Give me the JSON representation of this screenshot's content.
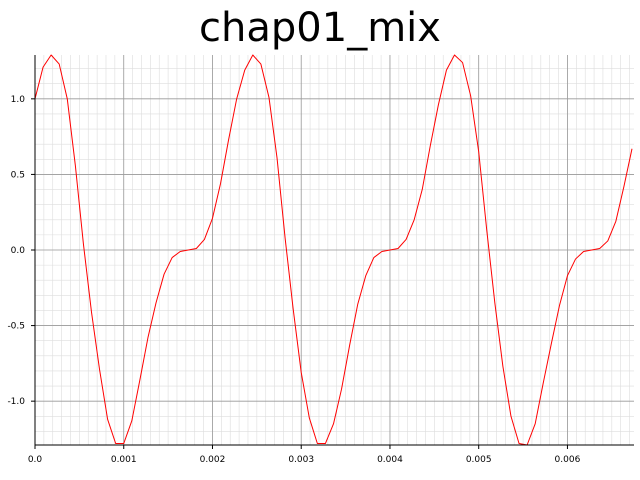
{
  "chart_data": {
    "type": "line",
    "title": "chap01_mix",
    "xlabel": "",
    "ylabel": "",
    "xlim": [
      0.0,
      0.00675
    ],
    "ylim": [
      -1.29,
      1.29
    ],
    "grid": true,
    "x_ticks": [
      {
        "value": 0.0,
        "label": "0.0"
      },
      {
        "value": 0.001,
        "label": "0.001"
      },
      {
        "value": 0.002,
        "label": "0.002"
      },
      {
        "value": 0.003,
        "label": "0.003"
      },
      {
        "value": 0.004,
        "label": "0.004"
      },
      {
        "value": 0.005,
        "label": "0.005"
      },
      {
        "value": 0.006,
        "label": "0.006"
      }
    ],
    "y_ticks": [
      {
        "value": 1.0,
        "label": "1.0"
      },
      {
        "value": 0.5,
        "label": "0.5"
      },
      {
        "value": 0.0,
        "label": "0.0"
      },
      {
        "value": -0.5,
        "label": "-0.5"
      },
      {
        "value": -1.0,
        "label": "-1.0"
      }
    ],
    "colors": {
      "line": "#ff0000",
      "major_grid": "#9a9a9a",
      "minor_grid": "#dddddd"
    },
    "series": [
      {
        "x": [
          0.0,
          9.09e-05,
          0.0001818,
          0.0002727,
          0.0003636,
          0.0004545,
          0.0005455,
          0.0006364,
          0.0007273,
          0.0008182,
          0.0009091,
          0.001,
          0.0010909,
          0.0011818,
          0.0012727,
          0.0013636,
          0.0014545,
          0.0015455,
          0.0016364,
          0.0017273,
          0.0018182,
          0.0019091,
          0.002,
          0.0020909,
          0.0021818,
          0.0022727,
          0.0023636,
          0.0024545,
          0.0025455,
          0.0026364,
          0.0027273,
          0.0028182,
          0.0029091,
          0.003,
          0.0030909,
          0.0031818,
          0.0032727,
          0.0033636,
          0.0034545,
          0.0035455,
          0.0036364,
          0.0037273,
          0.0038182,
          0.0039091,
          0.004,
          0.0040909,
          0.0041818,
          0.0042727,
          0.0043636,
          0.0044545,
          0.0045455,
          0.0046364,
          0.0047273,
          0.0048182,
          0.0049091,
          0.005,
          0.0050909,
          0.0051818,
          0.0052727,
          0.0053636,
          0.0054545,
          0.0055455,
          0.0056364,
          0.0057273,
          0.0058182,
          0.0059091,
          0.006,
          0.0060909,
          0.0061818,
          0.0062727,
          0.0063636,
          0.0064545,
          0.0065455,
          0.0066364,
          0.0067273
        ],
        "y": [
          1.0,
          1.21,
          1.29,
          1.23,
          1.0,
          0.56,
          0.04,
          -0.41,
          -0.79,
          -1.12,
          -1.28,
          -1.28,
          -1.13,
          -0.86,
          -0.58,
          -0.35,
          -0.16,
          -0.05,
          -0.01,
          0.0,
          0.01,
          0.07,
          0.21,
          0.44,
          0.73,
          1.0,
          1.19,
          1.29,
          1.23,
          1.01,
          0.61,
          0.08,
          -0.39,
          -0.81,
          -1.11,
          -1.28,
          -1.28,
          -1.15,
          -0.92,
          -0.63,
          -0.36,
          -0.17,
          -0.05,
          -0.01,
          0.0,
          0.01,
          0.07,
          0.2,
          0.4,
          0.69,
          0.96,
          1.19,
          1.29,
          1.24,
          1.02,
          0.65,
          0.13,
          -0.35,
          -0.77,
          -1.1,
          -1.28,
          -1.29,
          -1.15,
          -0.88,
          -0.62,
          -0.37,
          -0.17,
          -0.06,
          -0.01,
          0.0,
          0.01,
          0.06,
          0.19,
          0.42,
          0.67
        ]
      }
    ]
  }
}
